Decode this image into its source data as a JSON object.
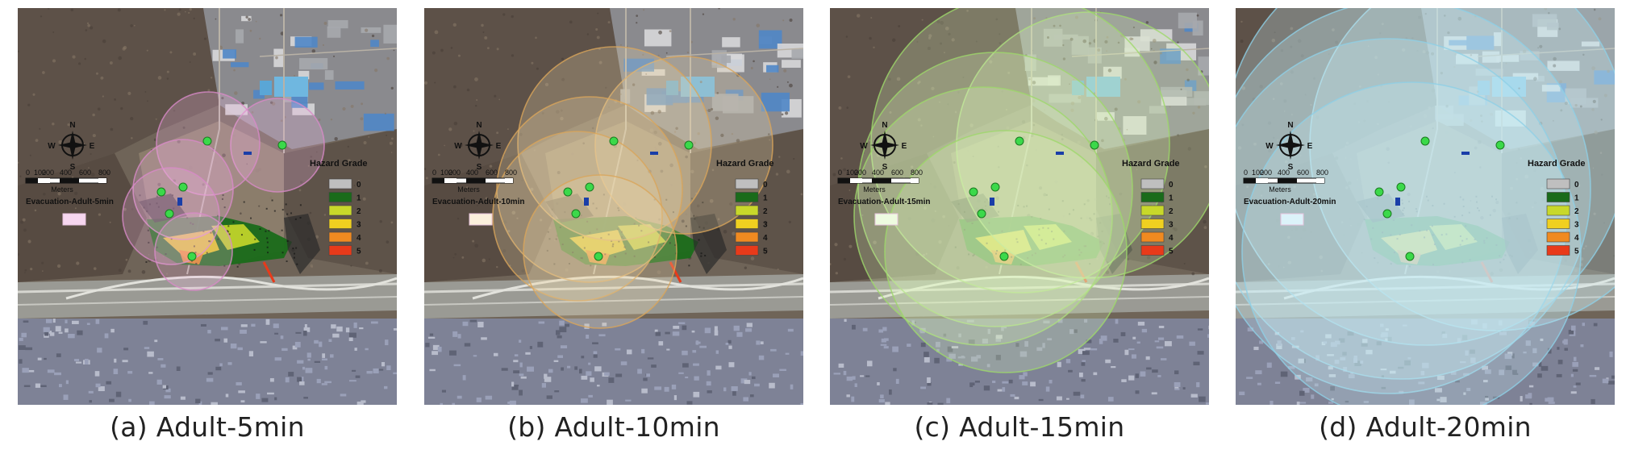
{
  "figure": {
    "panels": [
      {
        "caption": "(a) Adult-5min",
        "legend_title": "Evacuation-Adult-5min",
        "overlay_color": "#f4b8e4",
        "overlay_stroke": "#d88ac8",
        "overlay_opacity": 0.55,
        "swatch_color": "#f6d6ef",
        "reach": 1
      },
      {
        "caption": "(b) Adult-10min",
        "legend_title": "Evacuation-Adult-10min",
        "overlay_color": "#f0dcb0",
        "overlay_stroke": "#d9a55a",
        "overlay_opacity": 0.55,
        "swatch_color": "#fbf0dc",
        "reach": 2
      },
      {
        "caption": "(c) Adult-15min",
        "legend_title": "Evacuation-Adult-15min",
        "overlay_color": "#dff5c0",
        "overlay_stroke": "#9ed86a",
        "overlay_opacity": 0.55,
        "swatch_color": "#eefbe0",
        "reach": 3
      },
      {
        "caption": "(d) Adult-20min",
        "legend_title": "Evacuation-Adult-20min",
        "overlay_color": "#c8ecf6",
        "overlay_stroke": "#8fcfe6",
        "overlay_opacity": 0.62,
        "swatch_color": "#dcf3fa",
        "reach": 4
      }
    ],
    "hazard_legend": {
      "title": "Hazard Grade",
      "grades": [
        {
          "label": "0",
          "color": "#bfbfbf"
        },
        {
          "label": "1",
          "color": "#1a6b1a"
        },
        {
          "label": "2",
          "color": "#c8d82a"
        },
        {
          "label": "3",
          "color": "#f0d020"
        },
        {
          "label": "4",
          "color": "#f08a20"
        },
        {
          "label": "5",
          "color": "#e83a1a"
        }
      ]
    },
    "scale_bar": {
      "ticks": [
        "0",
        "100",
        "200",
        "400",
        "600",
        "800"
      ],
      "unit": "Meters"
    },
    "north_arrow": {
      "n": "N",
      "s": "S",
      "e": "E",
      "w": "W"
    },
    "shelter_color": "#3bd94a"
  }
}
